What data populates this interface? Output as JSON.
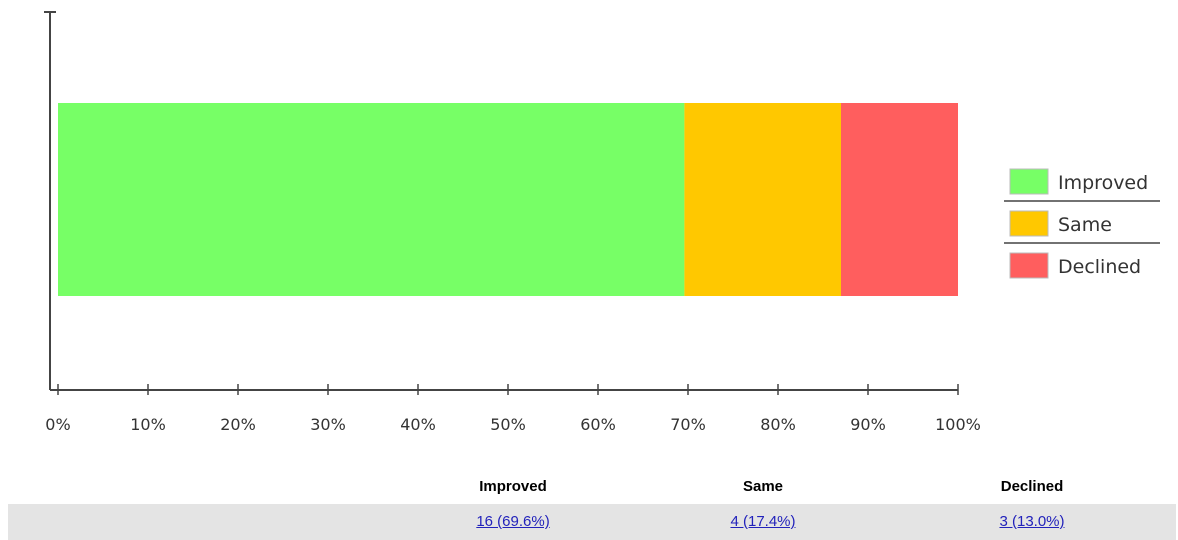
{
  "chart_data": {
    "type": "bar",
    "orientation": "horizontal",
    "stacked": true,
    "percent_scale": true,
    "categories": [
      ""
    ],
    "series": [
      {
        "name": "Improved",
        "values": [
          69.6
        ],
        "color": "#77ff66"
      },
      {
        "name": "Same",
        "values": [
          17.4
        ],
        "color": "#ffc800"
      },
      {
        "name": "Declined",
        "values": [
          13.0
        ],
        "color": "#ff5e5e"
      }
    ],
    "xlim": [
      0,
      100
    ],
    "x_ticks": [
      "0%",
      "10%",
      "20%",
      "30%",
      "40%",
      "50%",
      "60%",
      "70%",
      "80%",
      "90%",
      "100%"
    ],
    "legend": "right",
    "grid": false,
    "title": "",
    "xlabel": "",
    "ylabel": ""
  },
  "summary_table": {
    "headers": [
      "Improved",
      "Same",
      "Declined"
    ],
    "values": [
      "16 (69.6%)",
      "4 (17.4%)",
      "3 (13.0%)"
    ]
  }
}
